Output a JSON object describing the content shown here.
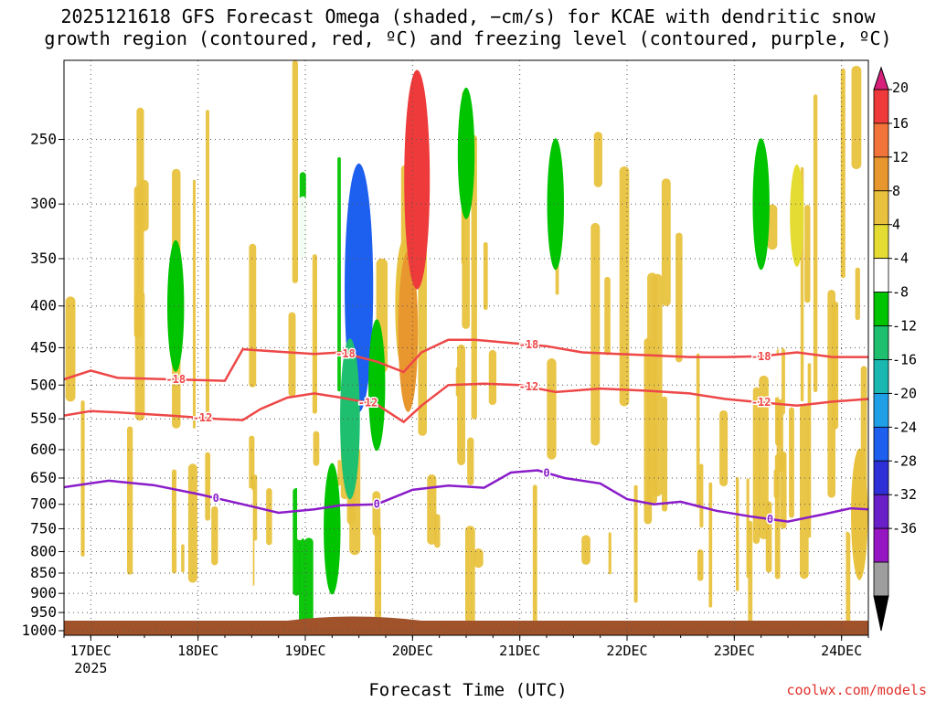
{
  "title_line1": "2025121618 GFS Forecast Omega (shaded, −cm/s) for KCAE with dendritic snow",
  "title_line2": "growth region (contoured, red, ºC) and freezing level (contoured, purple, ºC)",
  "x_axis_title": "Forecast Time (UTC)",
  "credit": "coolwx.com/models",
  "chart_data": {
    "type": "heatmap",
    "title": "2025121618 GFS Forecast Omega (shaded, −cm/s) for KCAE with dendritic snow growth region (contoured, red, ºC) and freezing level (contoured, purple, ºC)",
    "xlabel": "Forecast Time (UTC)",
    "ylabel": "",
    "x_ticks": [
      {
        "label": "17DEC",
        "sub": "2025",
        "t": 6
      },
      {
        "label": "18DEC",
        "t": 30
      },
      {
        "label": "19DEC",
        "t": 54
      },
      {
        "label": "20DEC",
        "t": 78
      },
      {
        "label": "21DEC",
        "t": 102
      },
      {
        "label": "22DEC",
        "t": 126
      },
      {
        "label": "23DEC",
        "t": 150
      },
      {
        "label": "24DEC",
        "t": 174
      }
    ],
    "x_range_hours_from_init": [
      0,
      180
    ],
    "y_ticks": [
      "250",
      "300",
      "350",
      "400",
      "450",
      "500",
      "550",
      "600",
      "650",
      "700",
      "750",
      "800",
      "850",
      "900",
      "950",
      "1000"
    ],
    "y_range_hPa": [
      200,
      1013
    ],
    "grid": true,
    "colorbar": {
      "position": "right",
      "labels": [
        "20",
        "16",
        "12",
        "8",
        "4",
        "-4",
        "-8",
        "-12",
        "-16",
        "-20",
        "-24",
        "-28",
        "-32",
        "-36"
      ],
      "colors": [
        "#d6207c",
        "#ee3a3a",
        "#f3743a",
        "#e8962e",
        "#e8c23e",
        "#e5dc33",
        "#ffffff",
        "#00c400",
        "#1ebf6e",
        "#18b7b0",
        "#1f9fe6",
        "#1d5fef",
        "#2f2fd8",
        "#6a20c8",
        "#9615c3",
        "#9e9e9e",
        "#000000"
      ]
    },
    "omega_features": [
      {
        "t": 66,
        "p": 380,
        "v": -24
      },
      {
        "t": 64,
        "p": 550,
        "v": -12
      },
      {
        "t": 70,
        "p": 500,
        "v": -8
      },
      {
        "t": 76,
        "p": 400,
        "v": 8
      },
      {
        "t": 79,
        "p": 300,
        "v": 12
      },
      {
        "t": 77,
        "p": 430,
        "v": 12
      },
      {
        "t": 79,
        "p": 280,
        "v": 20
      },
      {
        "t": 60,
        "p": 750,
        "v": -8
      },
      {
        "t": 90,
        "p": 260,
        "v": -8
      },
      {
        "t": 110,
        "p": 300,
        "v": -8
      },
      {
        "t": 25,
        "p": 400,
        "v": -8
      },
      {
        "t": 164,
        "p": 310,
        "v": 4
      },
      {
        "t": 178,
        "p": 720,
        "v": 8
      },
      {
        "t": 156,
        "p": 300,
        "v": -8
      }
    ],
    "series": [
      {
        "name": "-18",
        "label_positions_h": [
          25,
          63,
          104,
          156
        ],
        "points": [
          [
            0,
            492
          ],
          [
            6,
            480
          ],
          [
            12,
            490
          ],
          [
            24,
            492
          ],
          [
            36,
            494
          ],
          [
            40,
            452
          ],
          [
            48,
            455
          ],
          [
            56,
            458
          ],
          [
            62,
            456
          ],
          [
            70,
            468
          ],
          [
            76,
            482
          ],
          [
            80,
            456
          ],
          [
            86,
            440
          ],
          [
            92,
            440
          ],
          [
            100,
            444
          ],
          [
            108,
            448
          ],
          [
            116,
            456
          ],
          [
            124,
            458
          ],
          [
            132,
            460
          ],
          [
            140,
            462
          ],
          [
            148,
            462
          ],
          [
            156,
            461
          ],
          [
            164,
            456
          ],
          [
            172,
            462
          ],
          [
            180,
            462
          ]
        ]
      },
      {
        "name": "-12",
        "label_positions_h": [
          31,
          68,
          104,
          156
        ],
        "points": [
          [
            0,
            545
          ],
          [
            6,
            538
          ],
          [
            12,
            540
          ],
          [
            24,
            545
          ],
          [
            34,
            550
          ],
          [
            40,
            552
          ],
          [
            44,
            535
          ],
          [
            50,
            518
          ],
          [
            56,
            512
          ],
          [
            62,
            518
          ],
          [
            70,
            528
          ],
          [
            76,
            555
          ],
          [
            80,
            530
          ],
          [
            86,
            500
          ],
          [
            94,
            498
          ],
          [
            102,
            500
          ],
          [
            110,
            510
          ],
          [
            120,
            505
          ],
          [
            130,
            508
          ],
          [
            140,
            512
          ],
          [
            148,
            520
          ],
          [
            156,
            525
          ],
          [
            164,
            530
          ],
          [
            172,
            524
          ],
          [
            180,
            520
          ]
        ]
      },
      {
        "name": "0",
        "label_positions_h": [
          34,
          70,
          108,
          158
        ],
        "points": [
          [
            0,
            667
          ],
          [
            10,
            655
          ],
          [
            20,
            663
          ],
          [
            30,
            680
          ],
          [
            40,
            700
          ],
          [
            48,
            717
          ],
          [
            56,
            710
          ],
          [
            62,
            702
          ],
          [
            70,
            700
          ],
          [
            78,
            672
          ],
          [
            86,
            664
          ],
          [
            94,
            668
          ],
          [
            100,
            640
          ],
          [
            106,
            636
          ],
          [
            112,
            650
          ],
          [
            120,
            660
          ],
          [
            126,
            690
          ],
          [
            132,
            700
          ],
          [
            138,
            695
          ],
          [
            146,
            713
          ],
          [
            154,
            725
          ],
          [
            162,
            735
          ],
          [
            170,
            720
          ],
          [
            176,
            708
          ],
          [
            180,
            710
          ]
        ]
      }
    ]
  }
}
